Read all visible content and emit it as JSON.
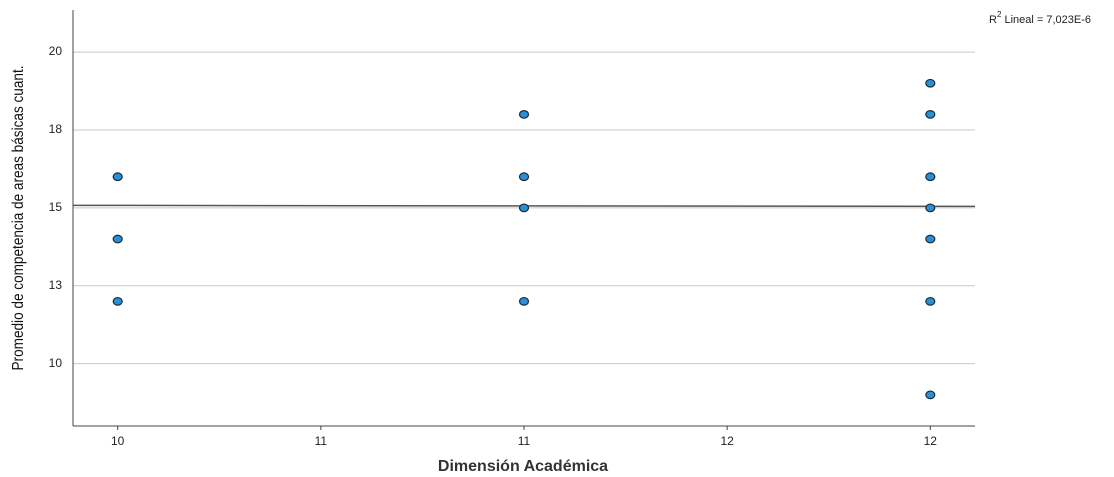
{
  "chart_data": {
    "type": "scatter",
    "x_label": "Dimensión Académica",
    "y_label": "Promedio de competencia de areas básicas cuant.",
    "annotation": {
      "base": "R",
      "sup": "2",
      "rest": " Lineal = 7,023E-6"
    },
    "xlim": [
      9.89,
      12.11
    ],
    "ylim": [
      8.0,
      21.35
    ],
    "xticks": [
      10,
      {
        "value": 10.5,
        "label": "11"
      },
      11,
      {
        "value": 11.5,
        "label": "12"
      },
      12
    ],
    "yticks": [
      10,
      {
        "value": 12.5,
        "label": "13"
      },
      15,
      {
        "value": 17.5,
        "label": "18"
      },
      20
    ],
    "grid": true,
    "series": [
      {
        "color": "#2a8fd4",
        "x": [
          10,
          10,
          10,
          11,
          11,
          11,
          11,
          12,
          12,
          12,
          12,
          12,
          12,
          12
        ],
        "values": [
          16,
          14,
          12,
          18,
          16,
          15,
          12,
          19,
          18,
          16,
          15,
          14,
          12,
          9
        ]
      }
    ],
    "fit_line": {
      "color": "#555555",
      "x": [
        9.89,
        12.11
      ],
      "y": [
        15.08,
        15.05
      ]
    }
  }
}
